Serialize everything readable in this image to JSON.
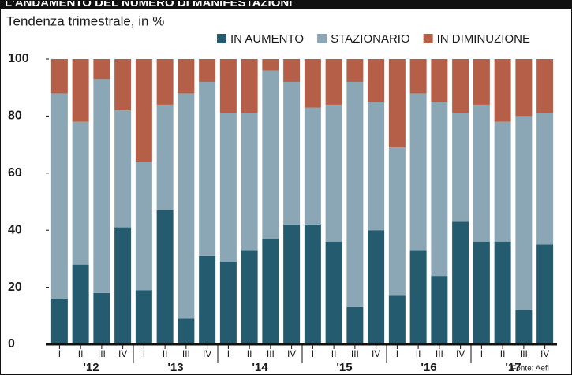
{
  "chart_data": {
    "type": "bar",
    "stacked": true,
    "title": "L'ANDAMENTO DEL NUMERO DI MANIFESTAZIONI",
    "subtitle": "Tendenza trimestrale, in %",
    "source": "Fonte: Aefi",
    "categories": [
      "I",
      "II",
      "III",
      "IV",
      "I",
      "II",
      "III",
      "IV",
      "I",
      "II",
      "III",
      "IV",
      "I",
      "II",
      "III",
      "IV",
      "I",
      "II",
      "III",
      "IV",
      "I",
      "II",
      "III",
      "IV"
    ],
    "groups": [
      "'12",
      "'13",
      "'14",
      "'15",
      "'16",
      "'17"
    ],
    "series": [
      {
        "name": "IN AUMENTO",
        "color": "#245b6e",
        "values": [
          16,
          28,
          18,
          41,
          19,
          47,
          9,
          31,
          29,
          33,
          37,
          42,
          42,
          36,
          13,
          40,
          17,
          33,
          24,
          43,
          36,
          36,
          12,
          35
        ]
      },
      {
        "name": "STAZIONARIO",
        "color": "#8ba7b6",
        "values": [
          72,
          50,
          75,
          41,
          45,
          37,
          79,
          61,
          52,
          48,
          59,
          50,
          41,
          48,
          79,
          45,
          52,
          55,
          61,
          38,
          48,
          42,
          68,
          46
        ]
      },
      {
        "name": "IN DIMINUZIONE",
        "color": "#b65f48",
        "values": [
          12,
          22,
          7,
          18,
          36,
          16,
          12,
          8,
          19,
          19,
          4,
          8,
          17,
          16,
          8,
          15,
          31,
          12,
          15,
          19,
          16,
          22,
          20,
          19
        ]
      }
    ],
    "ylim": [
      0,
      100
    ],
    "yticks": [
      0,
      20,
      40,
      60,
      80,
      100
    ],
    "grid": false
  }
}
